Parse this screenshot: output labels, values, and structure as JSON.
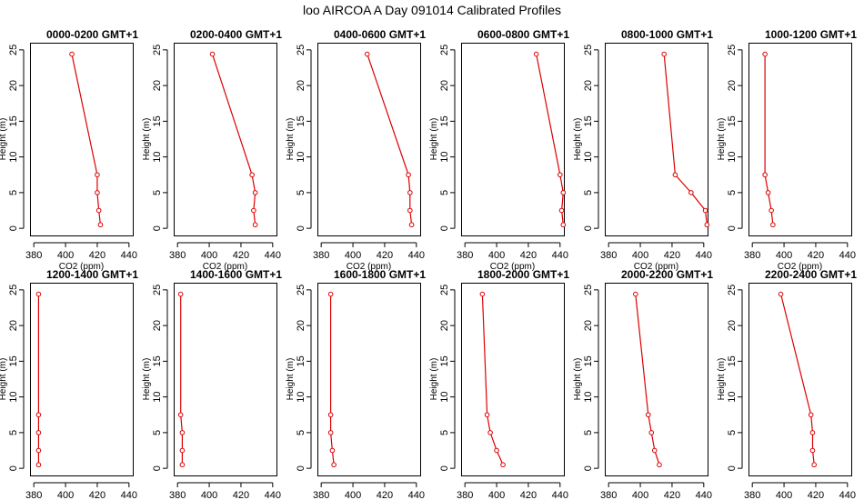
{
  "figure_title": "loo AIRCOA A  Day 091014  Calibrated Profiles",
  "colors": {
    "series": "#dd0000",
    "axis": "#000000",
    "background": "#ffffff"
  },
  "chart_data": [
    {
      "type": "line",
      "title": "0000-0200 GMT+1",
      "xlabel": "CO2 (ppm)",
      "ylabel": "Height (m)",
      "xlim": [
        380,
        440
      ],
      "ylim": [
        0,
        25
      ],
      "xticks": [
        380,
        400,
        420,
        440
      ],
      "yticks": [
        0,
        5,
        10,
        15,
        20,
        25
      ],
      "series": [
        {
          "x": [
            404,
            420,
            420,
            421,
            422
          ],
          "y": [
            24.4,
            7.5,
            5,
            2.5,
            0.5
          ]
        }
      ]
    },
    {
      "type": "line",
      "title": "0200-0400 GMT+1",
      "xlabel": "CO2 (ppm)",
      "ylabel": "Height (m)",
      "xlim": [
        380,
        440
      ],
      "ylim": [
        0,
        25
      ],
      "xticks": [
        380,
        400,
        420,
        440
      ],
      "yticks": [
        0,
        5,
        10,
        15,
        20,
        25
      ],
      "series": [
        {
          "x": [
            402,
            427,
            429,
            428,
            429
          ],
          "y": [
            24.4,
            7.5,
            5,
            2.5,
            0.5
          ]
        }
      ]
    },
    {
      "type": "line",
      "title": "0400-0600 GMT+1",
      "xlabel": "CO2 (ppm)",
      "ylabel": "Height (m)",
      "xlim": [
        380,
        440
      ],
      "ylim": [
        0,
        25
      ],
      "xticks": [
        380,
        400,
        420,
        440
      ],
      "yticks": [
        0,
        5,
        10,
        15,
        20,
        25
      ],
      "series": [
        {
          "x": [
            409,
            435,
            436,
            436,
            437
          ],
          "y": [
            24.4,
            7.5,
            5,
            2.5,
            0.5
          ]
        }
      ]
    },
    {
      "type": "line",
      "title": "0600-0800 GMT+1",
      "xlabel": "CO2 (ppm)",
      "ylabel": "Height (m)",
      "xlim": [
        380,
        440
      ],
      "ylim": [
        0,
        25
      ],
      "xticks": [
        380,
        400,
        420,
        440
      ],
      "yticks": [
        0,
        5,
        10,
        15,
        20,
        25
      ],
      "series": [
        {
          "x": [
            425,
            440,
            442,
            441,
            442
          ],
          "y": [
            24.4,
            7.5,
            5,
            2.5,
            0.5
          ]
        }
      ]
    },
    {
      "type": "line",
      "title": "0800-1000 GMT+1",
      "xlabel": "CO2 (ppm)",
      "ylabel": "Height (m)",
      "xlim": [
        380,
        440
      ],
      "ylim": [
        0,
        25
      ],
      "xticks": [
        380,
        400,
        420,
        440
      ],
      "yticks": [
        0,
        5,
        10,
        15,
        20,
        25
      ],
      "series": [
        {
          "x": [
            415,
            422,
            432,
            441,
            442
          ],
          "y": [
            24.4,
            7.5,
            5,
            2.5,
            0.5
          ]
        }
      ]
    },
    {
      "type": "line",
      "title": "1000-1200 GMT+1",
      "xlabel": "CO2 (ppm)",
      "ylabel": "Height (m)",
      "xlim": [
        380,
        440
      ],
      "ylim": [
        0,
        25
      ],
      "xticks": [
        380,
        400,
        420,
        440
      ],
      "yticks": [
        0,
        5,
        10,
        15,
        20,
        25
      ],
      "series": [
        {
          "x": [
            388,
            388,
            390,
            392,
            393
          ],
          "y": [
            24.4,
            7.5,
            5,
            2.5,
            0.5
          ]
        }
      ]
    },
    {
      "type": "line",
      "title": "1200-1400 GMT+1",
      "xlabel": "CO2 (ppm)",
      "ylabel": "Height (m)",
      "xlim": [
        380,
        440
      ],
      "ylim": [
        0,
        25
      ],
      "xticks": [
        380,
        400,
        420,
        440
      ],
      "yticks": [
        0,
        5,
        10,
        15,
        20,
        25
      ],
      "series": [
        {
          "x": [
            383,
            383,
            383,
            383,
            383
          ],
          "y": [
            24.4,
            7.5,
            5,
            2.5,
            0.5
          ]
        }
      ]
    },
    {
      "type": "line",
      "title": "1400-1600 GMT+1",
      "xlabel": "CO2 (ppm)",
      "ylabel": "Height (m)",
      "xlim": [
        380,
        440
      ],
      "ylim": [
        0,
        25
      ],
      "xticks": [
        380,
        400,
        420,
        440
      ],
      "yticks": [
        0,
        5,
        10,
        15,
        20,
        25
      ],
      "series": [
        {
          "x": [
            382,
            382,
            383,
            383,
            383
          ],
          "y": [
            24.4,
            7.5,
            5,
            2.5,
            0.5
          ]
        }
      ]
    },
    {
      "type": "line",
      "title": "1600-1800 GMT+1",
      "xlabel": "CO2 (ppm)",
      "ylabel": "Height (m)",
      "xlim": [
        380,
        440
      ],
      "ylim": [
        0,
        25
      ],
      "xticks": [
        380,
        400,
        420,
        440
      ],
      "yticks": [
        0,
        5,
        10,
        15,
        20,
        25
      ],
      "series": [
        {
          "x": [
            386,
            386,
            386,
            387,
            388
          ],
          "y": [
            24.4,
            7.5,
            5,
            2.5,
            0.5
          ]
        }
      ]
    },
    {
      "type": "line",
      "title": "1800-2000 GMT+1",
      "xlabel": "CO2 (ppm)",
      "ylabel": "Height (m)",
      "xlim": [
        380,
        440
      ],
      "ylim": [
        0,
        25
      ],
      "xticks": [
        380,
        400,
        420,
        440
      ],
      "yticks": [
        0,
        5,
        10,
        15,
        20,
        25
      ],
      "series": [
        {
          "x": [
            391,
            394,
            396,
            400,
            404
          ],
          "y": [
            24.4,
            7.5,
            5,
            2.5,
            0.5
          ]
        }
      ]
    },
    {
      "type": "line",
      "title": "2000-2200 GMT+1",
      "xlabel": "CO2 (ppm)",
      "ylabel": "Height (m)",
      "xlim": [
        380,
        440
      ],
      "ylim": [
        0,
        25
      ],
      "xticks": [
        380,
        400,
        420,
        440
      ],
      "yticks": [
        0,
        5,
        10,
        15,
        20,
        25
      ],
      "series": [
        {
          "x": [
            397,
            405,
            407,
            409,
            412
          ],
          "y": [
            24.4,
            7.5,
            5,
            2.5,
            0.5
          ]
        }
      ]
    },
    {
      "type": "line",
      "title": "2200-2400 GMT+1",
      "xlabel": "CO2 (ppm)",
      "ylabel": "Height (m)",
      "xlim": [
        380,
        440
      ],
      "ylim": [
        0,
        25
      ],
      "xticks": [
        380,
        400,
        420,
        440
      ],
      "yticks": [
        0,
        5,
        10,
        15,
        20,
        25
      ],
      "series": [
        {
          "x": [
            398,
            417,
            418,
            418,
            419
          ],
          "y": [
            24.4,
            7.5,
            5,
            2.5,
            0.5
          ]
        }
      ]
    }
  ]
}
